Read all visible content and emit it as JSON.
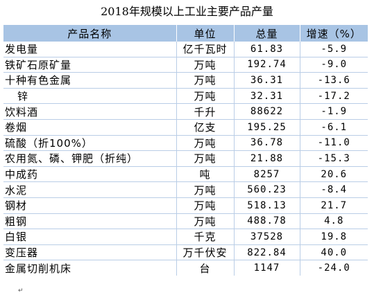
{
  "title": "2018年规模以上工业主要产品产量",
  "headers": [
    "产品名称",
    "单位",
    "总量",
    "增速（%）"
  ],
  "rows": [
    {
      "name": "发电量",
      "unit": "亿千瓦时",
      "total": "61.83",
      "growth": "-5.9"
    },
    {
      "name": "铁矿石原矿量",
      "unit": "万吨",
      "total": "192.74",
      "growth": "-9.0"
    },
    {
      "name": "十种有色金属",
      "unit": "万吨",
      "total": "36.31",
      "growth": "-13.6"
    },
    {
      "name": "锌",
      "unit": "万吨",
      "total": "32.31",
      "growth": "-17.2"
    },
    {
      "name": "饮料酒",
      "unit": "千升",
      "total": "88622",
      "growth": "-1.9"
    },
    {
      "name": "卷烟",
      "unit": "亿支",
      "total": "195.25",
      "growth": "-6.1"
    },
    {
      "name": "硫酸（折100%）",
      "unit": "万吨",
      "total": "36.78",
      "growth": "-11.0"
    },
    {
      "name": "农用氮、磷、钾肥（折纯）",
      "unit": "万吨",
      "total": "21.88",
      "growth": "-15.3"
    },
    {
      "name": "中成药",
      "unit": "吨",
      "total": "8257",
      "growth": "20.6"
    },
    {
      "name": "水泥",
      "unit": "万吨",
      "total": "560.23",
      "growth": "-8.4"
    },
    {
      "name": "钢材",
      "unit": "万吨",
      "total": "518.13",
      "growth": "21.7"
    },
    {
      "name": "粗钢",
      "unit": "万吨",
      "total": "488.78",
      "growth": "4.8"
    },
    {
      "name": "白银",
      "unit": "千克",
      "total": "37528",
      "growth": "19.8"
    },
    {
      "name": "变压器",
      "unit": "万千伏安",
      "total": "822.84",
      "growth": "40.0"
    },
    {
      "name": "金属切削机床",
      "unit": "台",
      "total": "1147",
      "growth": "-24.0"
    }
  ]
}
